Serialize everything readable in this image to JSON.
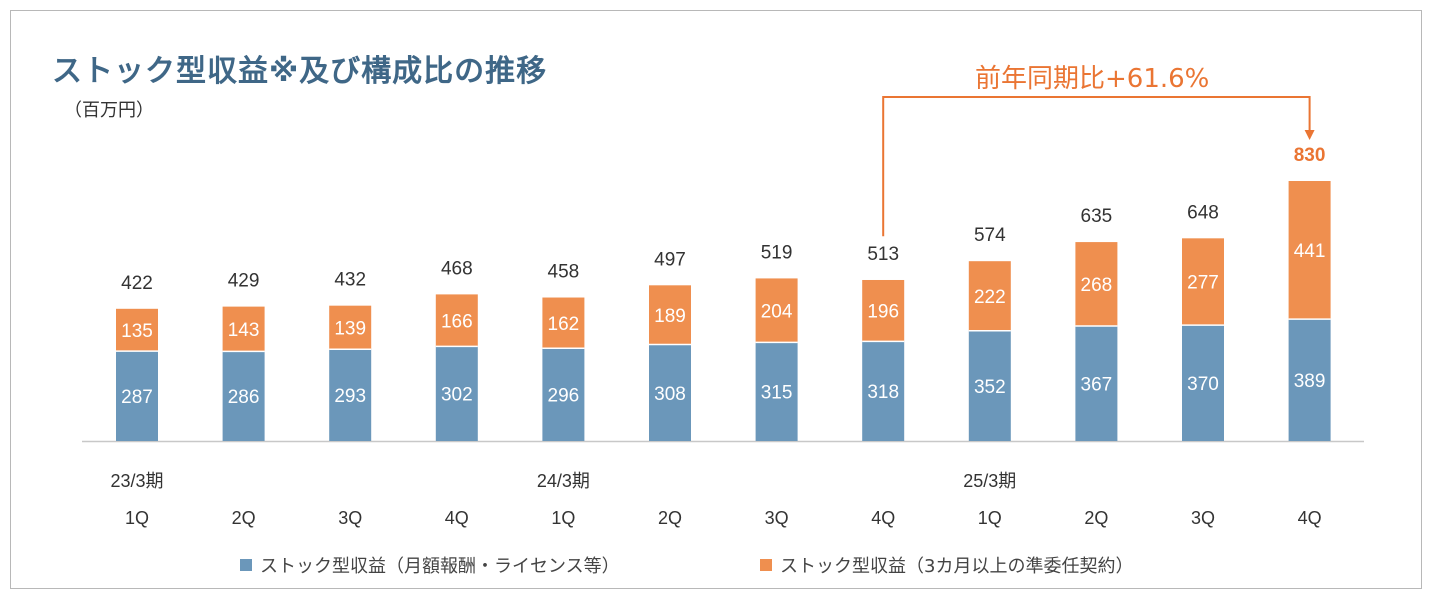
{
  "title": "ストック型収益※及び構成比の推移",
  "unit_label": "（百万円）",
  "yoy_label": "前年同期比+61.6%",
  "colors": {
    "bottom_series": "#6b97ba",
    "top_series": "#ef8f4f",
    "accent": "#ea7533",
    "title": "#3f6787",
    "axis": "#c8c8c8"
  },
  "legend": [
    {
      "label": "ストック型収益（月額報酬・ライセンス等）",
      "color": "#6b97ba"
    },
    {
      "label": "ストック型収益（3カ月以上の準委任契約）",
      "color": "#ef8f4f"
    }
  ],
  "chart_data": {
    "type": "bar",
    "stacked": true,
    "categories": [
      "1Q",
      "2Q",
      "3Q",
      "4Q",
      "1Q",
      "2Q",
      "3Q",
      "4Q",
      "1Q",
      "2Q",
      "3Q",
      "4Q"
    ],
    "fiscal_year_labels": [
      {
        "label": "23/3期",
        "index": 0
      },
      {
        "label": "24/3期",
        "index": 4
      },
      {
        "label": "25/3期",
        "index": 8
      }
    ],
    "series": [
      {
        "name": "ストック型収益（月額報酬・ライセンス等）",
        "values": [
          287,
          286,
          293,
          302,
          296,
          308,
          315,
          318,
          352,
          367,
          370,
          389
        ]
      },
      {
        "name": "ストック型収益（3カ月以上の準委任契約）",
        "values": [
          135,
          143,
          139,
          166,
          162,
          189,
          204,
          196,
          222,
          268,
          277,
          441
        ]
      }
    ],
    "totals": [
      422,
      429,
      432,
      468,
      458,
      497,
      519,
      513,
      574,
      635,
      648,
      830
    ],
    "highlight_total_index": 11,
    "ylim": [
      0,
      830
    ],
    "legend_position": "bottom",
    "grid": false,
    "annotation": {
      "text": "前年同期比+61.6%",
      "from_index": 7,
      "to_index": 11
    }
  }
}
